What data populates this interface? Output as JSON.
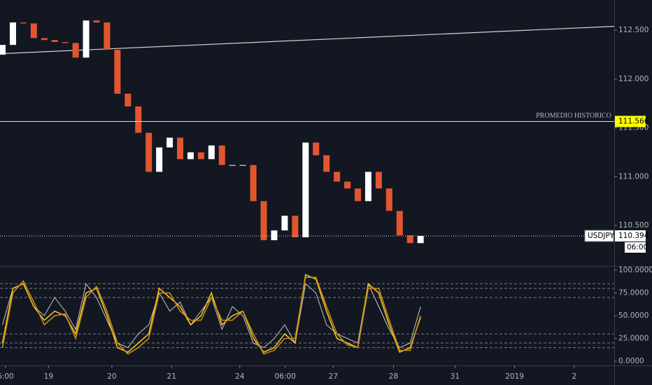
{
  "chart_data": [
    {
      "type": "candlestick",
      "x": [
        -0.05,
        0.12,
        0.29,
        0.46,
        0.63,
        0.8,
        0.97,
        1.14,
        1.31,
        1.48,
        1.65,
        1.82,
        1.99,
        2.16,
        2.33,
        2.5,
        2.67,
        2.84,
        3.01,
        3.18,
        3.35,
        3.52,
        3.69,
        3.86,
        4.03,
        4.2,
        4.37,
        4.54,
        4.71,
        4.88,
        5.05,
        5.22,
        5.39,
        5.56,
        5.73,
        5.9,
        6.07,
        6.24,
        6.41,
        6.58,
        6.75
      ],
      "open": [
        112.25,
        112.35,
        112.58,
        112.57,
        112.42,
        112.4,
        112.38,
        112.37,
        112.22,
        112.6,
        112.58,
        112.3,
        111.85,
        111.72,
        111.45,
        111.05,
        111.3,
        111.4,
        111.18,
        111.25,
        111.18,
        111.32,
        111.12,
        111.12,
        111.12,
        110.75,
        110.35,
        110.45,
        110.6,
        110.38,
        111.35,
        111.22,
        111.05,
        110.95,
        110.88,
        110.75,
        111.05,
        110.88,
        110.65,
        110.4,
        110.32
      ],
      "close": [
        112.35,
        112.58,
        112.57,
        112.42,
        112.4,
        112.38,
        112.37,
        112.22,
        112.6,
        112.58,
        112.3,
        111.85,
        111.72,
        111.45,
        111.05,
        111.3,
        111.4,
        111.18,
        111.25,
        111.18,
        111.32,
        111.12,
        111.12,
        111.12,
        110.75,
        110.35,
        110.45,
        110.6,
        110.38,
        111.35,
        111.22,
        111.05,
        110.95,
        110.88,
        110.75,
        111.05,
        110.88,
        110.65,
        110.4,
        110.32,
        110.394
      ],
      "up_color": "#ffffff",
      "down_color": "#e2562f",
      "xlim": [
        -0.09,
        9.9
      ],
      "ylim": [
        110.1,
        112.81
      ],
      "yticks": [
        {
          "value": 110.5,
          "label": "110.500"
        },
        {
          "value": 111,
          "label": "111.000"
        },
        {
          "value": 111.5,
          "label": "111.500"
        },
        {
          "value": 112,
          "label": "112.000"
        },
        {
          "value": 112.5,
          "label": "112.500"
        }
      ],
      "trend_line": {
        "x": [
          -0.09,
          9.9
        ],
        "values": [
          112.26,
          112.54
        ],
        "color": "#d1d4dc"
      },
      "hline": {
        "value": 111.566,
        "label": "PROMEDIO HISTORICO",
        "color": "#ffff00"
      },
      "last_price": {
        "value": 110.394,
        "symbol": "USDJPY",
        "countdown": "06:00"
      }
    },
    {
      "type": "line",
      "x": [
        -0.05,
        0.12,
        0.29,
        0.46,
        0.63,
        0.8,
        0.97,
        1.14,
        1.31,
        1.48,
        1.65,
        1.82,
        1.99,
        2.16,
        2.33,
        2.5,
        2.67,
        2.84,
        3.01,
        3.18,
        3.35,
        3.52,
        3.69,
        3.86,
        4.03,
        4.2,
        4.37,
        4.54,
        4.71,
        4.88,
        5.05,
        5.22,
        5.39,
        5.56,
        5.73,
        5.9,
        6.07,
        6.24,
        6.41,
        6.58,
        6.75
      ],
      "series": [
        {
          "color": "#c8c8c8",
          "values": [
            40,
            80,
            85,
            60,
            50,
            70,
            55,
            35,
            85,
            70,
            45,
            20,
            15,
            30,
            40,
            75,
            55,
            65,
            40,
            55,
            70,
            35,
            60,
            50,
            20,
            15,
            25,
            40,
            20,
            85,
            75,
            40,
            30,
            25,
            20,
            85,
            60,
            35,
            15,
            20,
            60
          ]
        },
        {
          "color": "#f0c419",
          "values": [
            20,
            80,
            85,
            60,
            45,
            55,
            50,
            30,
            75,
            80,
            50,
            15,
            10,
            20,
            30,
            80,
            70,
            60,
            40,
            50,
            75,
            40,
            50,
            55,
            25,
            10,
            15,
            30,
            20,
            95,
            90,
            55,
            25,
            20,
            15,
            85,
            75,
            40,
            10,
            15,
            48
          ]
        },
        {
          "color": "#c98a1c",
          "values": [
            15,
            75,
            88,
            65,
            40,
            50,
            52,
            25,
            70,
            82,
            55,
            20,
            8,
            15,
            25,
            75,
            75,
            55,
            45,
            45,
            70,
            45,
            45,
            55,
            30,
            8,
            12,
            25,
            25,
            92,
            92,
            60,
            30,
            18,
            15,
            80,
            80,
            45,
            12,
            12,
            50
          ]
        }
      ],
      "levels": [
        85,
        80,
        70,
        30,
        20,
        15
      ],
      "xlim": [
        -0.09,
        9.9
      ],
      "ylim": [
        -3,
        103
      ],
      "yticks": [
        {
          "value": 0,
          "label": "0.0000"
        },
        {
          "value": 25,
          "label": "25.0000"
        },
        {
          "value": 50,
          "label": "50.0000"
        },
        {
          "value": 75,
          "label": "75.0000"
        },
        {
          "value": 100,
          "label": "100.0000"
        }
      ],
      "xticks": [
        {
          "value": 0,
          "label": "6:00"
        },
        {
          "value": 0.7,
          "label": "19"
        },
        {
          "value": 1.73,
          "label": "20"
        },
        {
          "value": 2.7,
          "label": "21"
        },
        {
          "value": 3.81,
          "label": "24"
        },
        {
          "value": 4.55,
          "label": "06:00"
        },
        {
          "value": 5.33,
          "label": "27"
        },
        {
          "value": 6.31,
          "label": "28"
        },
        {
          "value": 7.31,
          "label": "31"
        },
        {
          "value": 8.28,
          "label": "2019"
        },
        {
          "value": 9.25,
          "label": "2"
        }
      ]
    }
  ]
}
